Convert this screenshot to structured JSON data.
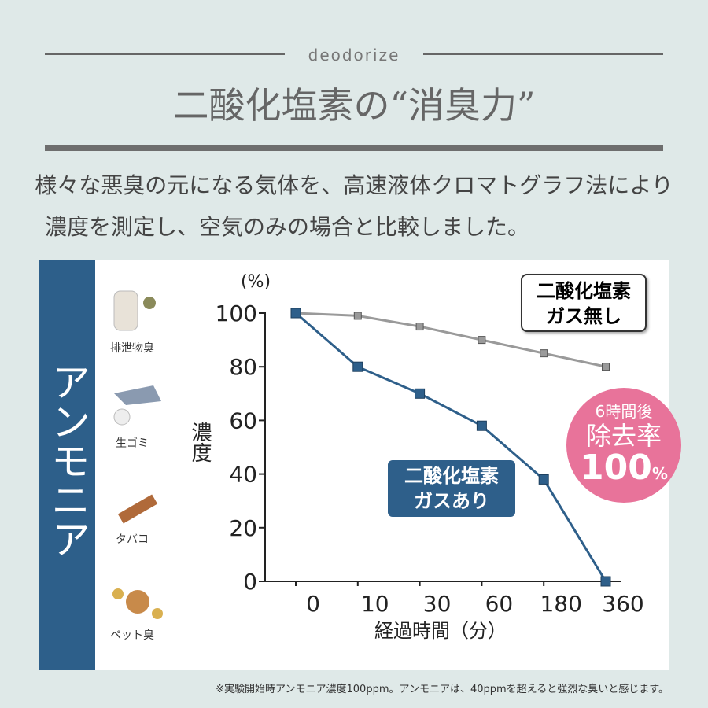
{
  "header": {
    "tag": "deodorize",
    "title": "二酸化塩素の“消臭力”",
    "description": [
      "様々な悪臭の元になる気体を、高速液体クロマトグラフ法により",
      "濃度を測定し、空気のみの場合と比較しました。"
    ]
  },
  "sidebar": {
    "label": "アンモニア",
    "sources": [
      "排泄物臭",
      "生ゴミ",
      "タバコ",
      "ペット臭"
    ]
  },
  "chart_data": {
    "type": "line",
    "unit": "(%)",
    "y_label": "濃度",
    "x_label": "経過時間（分）",
    "categories": [
      "0",
      "10",
      "30",
      "60",
      "180",
      "360"
    ],
    "series": [
      {
        "name": "二酸化塩素\nガス無し",
        "color": "#9a9a9a",
        "values": [
          100,
          99,
          95,
          90,
          85,
          80
        ]
      },
      {
        "name": "二酸化塩素\nガスあり",
        "color": "#2e5f8a",
        "values": [
          100,
          80,
          70,
          58,
          38,
          0
        ]
      }
    ],
    "ylim": [
      0,
      100
    ],
    "yticks": [
      0,
      20,
      40,
      60,
      80,
      100
    ],
    "badge": {
      "line1": "6時間後",
      "line2": "除去率",
      "value": "100",
      "unit": "%"
    }
  },
  "footnote": "※実験開始時アンモニア濃度100ppm。アンモニアは、40ppmを超えると強烈な臭いと感じます。"
}
